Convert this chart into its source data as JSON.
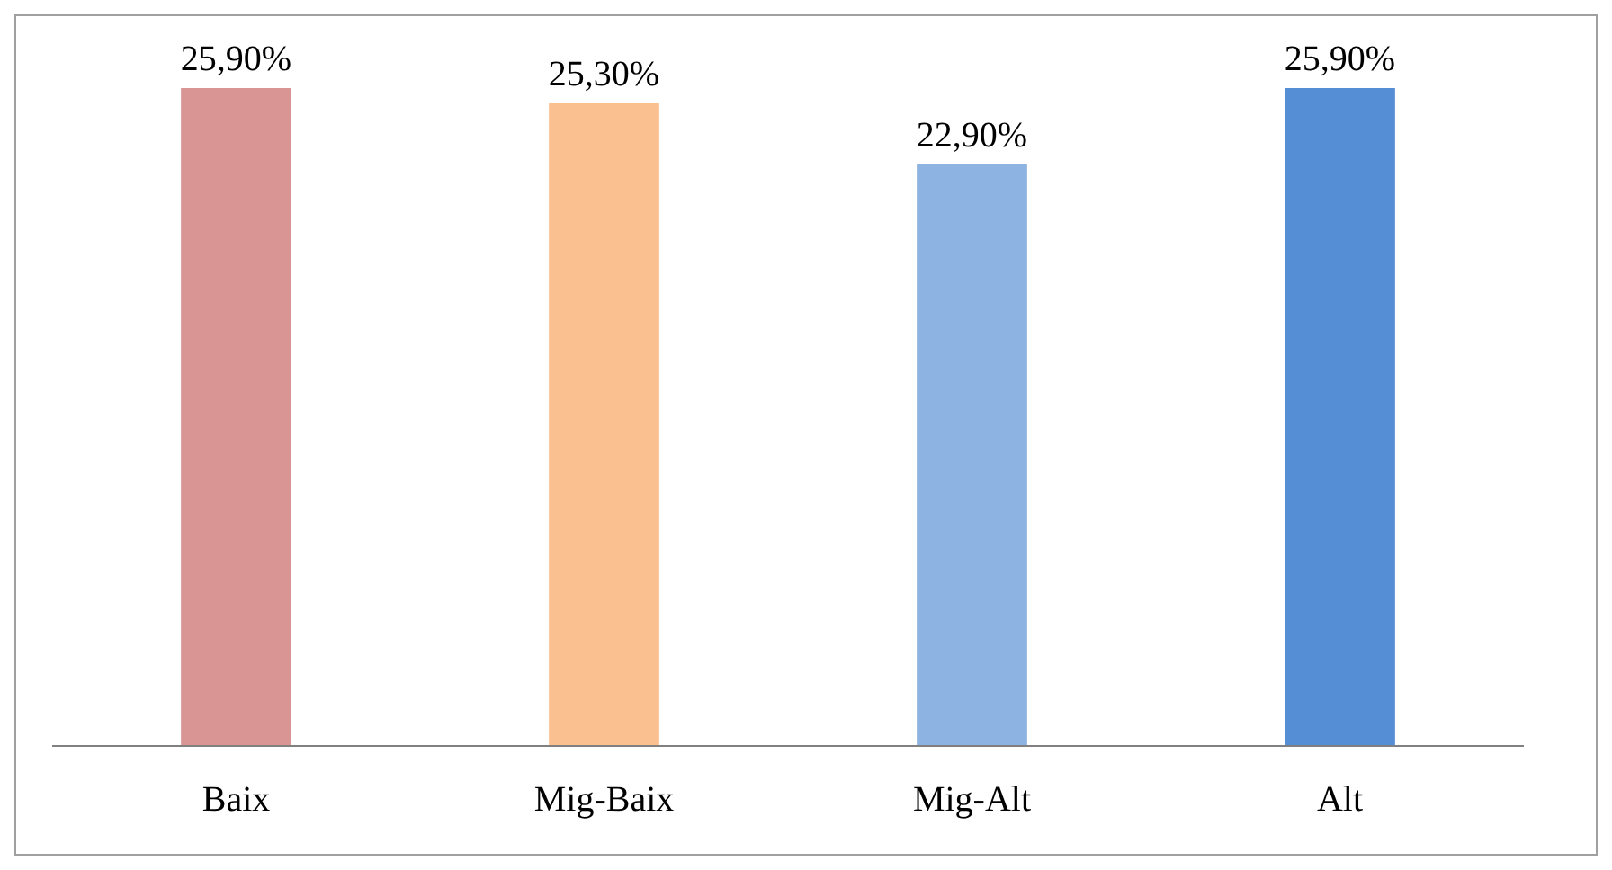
{
  "chart_data": {
    "type": "bar",
    "categories": [
      "Baix",
      "Mig-Baix",
      "Mig-Alt",
      "Alt"
    ],
    "values": [
      25.9,
      25.3,
      22.9,
      25.9
    ],
    "colors": [
      "#d99594",
      "#fac08f",
      "#8db3e2",
      "#558ed5"
    ],
    "value_labels": [
      "25,90%",
      "25,30%",
      "22,90%",
      "25,90%"
    ],
    "tick_labels": "x"
  }
}
